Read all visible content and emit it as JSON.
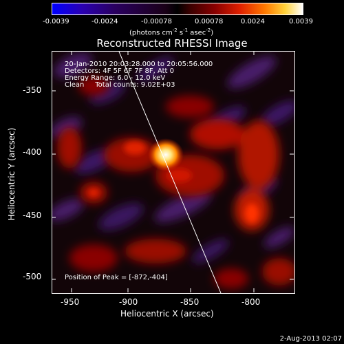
{
  "colorbar": {
    "ticks": [
      "-0.0039",
      "-0.0024",
      "-0.00078",
      "0.00078",
      "0.0024",
      "0.0039"
    ],
    "units_main": "(photons cm",
    "units_sup1": "-2",
    "units_mid": " s",
    "units_sup2": "-1",
    "units_mid2": " asec",
    "units_sup3": "-2",
    "units_end": ")"
  },
  "title": "Reconstructed RHESSI Image",
  "annotations": {
    "time": "20-Jan-2010 20:03:28.000 to 20:05:56.000",
    "detectors": "Detectors: 4F 5F 6F 7F 8F, Att 0",
    "energy": "Energy Range: 6.0 - 12.0 keV",
    "clean": "Clean     Total counts: 9.02E+03",
    "peak": "Position of Peak = [-872,-404]"
  },
  "axes": {
    "ylabel": "Heliocentric Y (arcsec)",
    "xlabel": "Heliocentric X (arcsec)",
    "yticks": [
      "-350",
      "-400",
      "-450",
      "-500"
    ],
    "xticks": [
      "-950",
      "-900",
      "-850",
      "-800"
    ]
  },
  "footer_date": "2-Aug-2013 02:07"
}
